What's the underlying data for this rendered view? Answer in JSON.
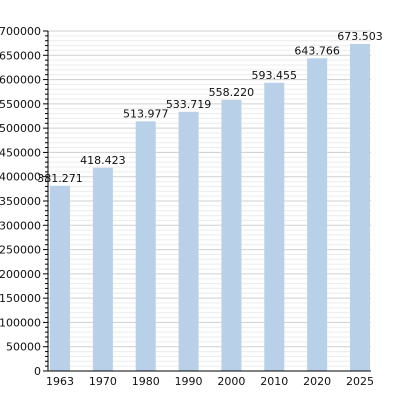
{
  "chart_data": {
    "type": "bar",
    "categories": [
      "1963",
      "1970",
      "1980",
      "1990",
      "2000",
      "2010",
      "2020",
      "2025"
    ],
    "values": [
      381271,
      418423,
      513977,
      533719,
      558220,
      593455,
      643766,
      673503
    ],
    "data_labels": [
      "381.271",
      "418.423",
      "513.977",
      "533.719",
      "558.220",
      "593.455",
      "643.766",
      "673.503"
    ],
    "y_ticks": [
      "0",
      "50000",
      "100000",
      "150000",
      "200000",
      "250000",
      "300000",
      "350000",
      "400000",
      "450000",
      "500000",
      "550000",
      "600000",
      "650000",
      "700000"
    ],
    "ylim": [
      0,
      700000
    ],
    "grid": true,
    "bar_color": "#b8d0e8",
    "grid_color": "#cfcfcf",
    "axis_color": "#000000"
  }
}
